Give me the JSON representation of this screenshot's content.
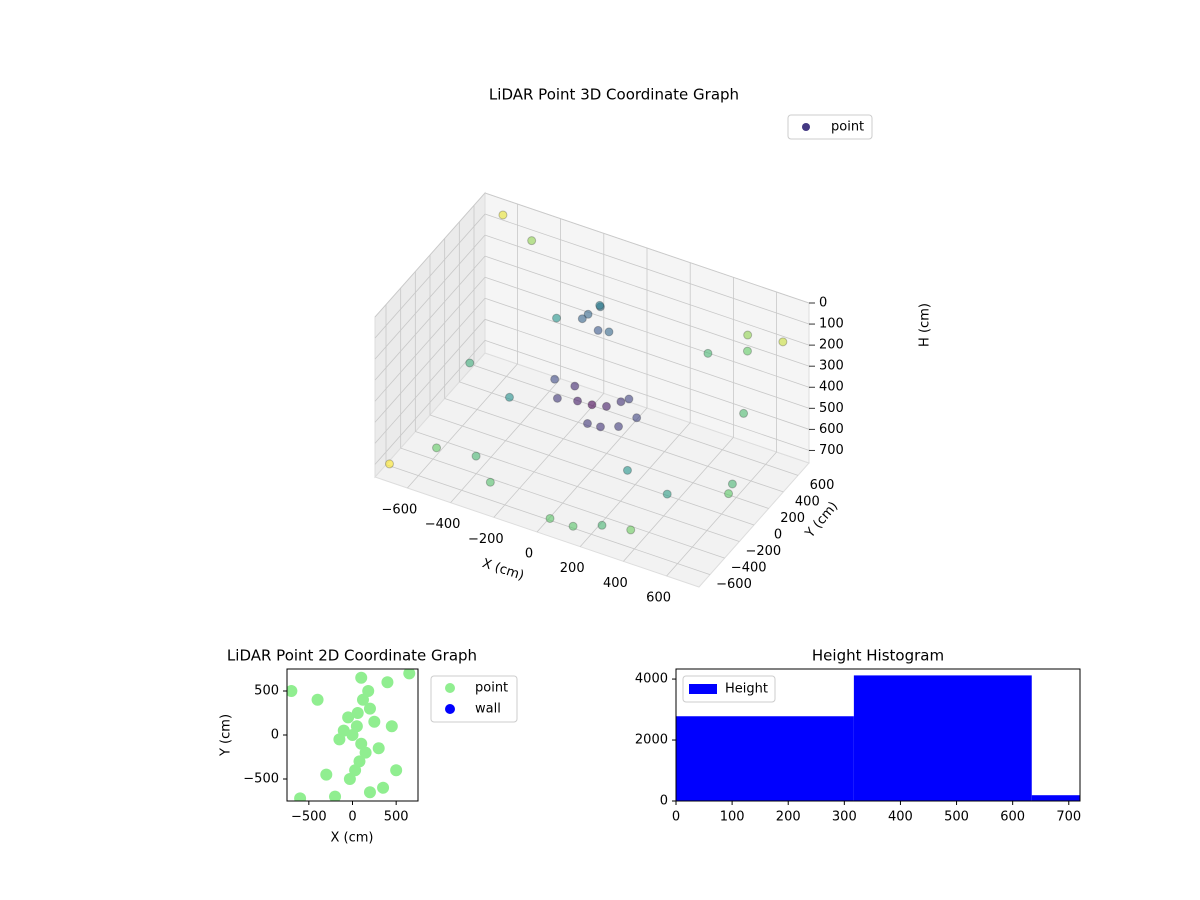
{
  "chart_data": [
    {
      "type": "scatter3d",
      "title": "LiDAR Point 3D Coordinate Graph",
      "xlabel": "X (cm)",
      "ylabel": "Y (cm)",
      "zlabel": "H (cm)",
      "xlim": [
        -750,
        750
      ],
      "ylim": [
        -750,
        750
      ],
      "zlim": [
        0,
        760
      ],
      "z_inverted": true,
      "xticks": [
        {
          "value": -600,
          "label": "−600"
        },
        {
          "value": -400,
          "label": "−400"
        },
        {
          "value": -200,
          "label": "−200"
        },
        0,
        200,
        400,
        600
      ],
      "yticks": [
        {
          "value": -600,
          "label": "−600"
        },
        {
          "value": -400,
          "label": "−400"
        },
        {
          "value": -200,
          "label": "−200"
        },
        0,
        200,
        400,
        600
      ],
      "zticks": [
        0,
        100,
        200,
        300,
        400,
        500,
        600,
        700
      ],
      "grid": true,
      "legend": "upper right",
      "series": [
        {
          "name": "point",
          "color": "#443983",
          "colormap": "viridis",
          "x": [
            -120,
            -80,
            -60,
            -140,
            -100,
            -30,
            0,
            50,
            -50,
            100,
            150,
            -100,
            80,
            200,
            -200,
            30,
            120,
            -150,
            300,
            -300,
            450,
            -450,
            550,
            -550,
            250,
            -350,
            600,
            -600,
            400,
            680,
            -700,
            700,
            -500,
            350,
            500,
            -650,
            150,
            -250,
            50,
            650
          ],
          "y": [
            300,
            350,
            260,
            280,
            400,
            320,
            0,
            50,
            -50,
            100,
            -80,
            60,
            -120,
            20,
            80,
            -150,
            150,
            -30,
            -400,
            400,
            -300,
            200,
            500,
            -500,
            -600,
            -550,
            300,
            100,
            -650,
            600,
            -700,
            -200,
            650,
            550,
            650,
            700,
            -700,
            -650,
            -720,
            0
          ],
          "z": [
            180,
            150,
            220,
            200,
            170,
            240,
            450,
            460,
            430,
            440,
            470,
            420,
            480,
            450,
            430,
            470,
            440,
            460,
            500,
            300,
            600,
            650,
            200,
            650,
            700,
            600,
            400,
            500,
            650,
            150,
            700,
            550,
            100,
            300,
            200,
            50,
            700,
            650,
            690,
            600
          ]
        }
      ]
    },
    {
      "type": "scatter",
      "title": "LiDAR Point 2D Coordinate Graph",
      "xlabel": "X (cm)",
      "ylabel": "Y (cm)",
      "xlim": [
        -750,
        750
      ],
      "ylim": [
        -750,
        750
      ],
      "xticks": [
        {
          "value": -500,
          "label": "−500"
        },
        0,
        500
      ],
      "yticks": [
        {
          "value": -500,
          "label": "−500"
        },
        0,
        500
      ],
      "legend": "outside right",
      "series": [
        {
          "name": "point",
          "color": "#90ee90",
          "x": [
            0,
            50,
            100,
            -50,
            150,
            200,
            -100,
            80,
            120,
            30,
            -150,
            250,
            300,
            180,
            -30,
            60,
            400,
            -300,
            500,
            -700,
            650,
            -200,
            350,
            100,
            -600,
            450,
            200,
            -400
          ],
          "y": [
            0,
            100,
            -100,
            200,
            -200,
            300,
            50,
            -300,
            400,
            -400,
            -50,
            150,
            -150,
            500,
            -500,
            250,
            600,
            -450,
            -400,
            500,
            700,
            -700,
            -600,
            650,
            -720,
            100,
            -650,
            400
          ]
        },
        {
          "name": "wall",
          "color": "#0000ff",
          "x": [],
          "y": []
        }
      ]
    },
    {
      "type": "histogram",
      "title": "Height Histogram",
      "name": "Height",
      "color": "#0000ff",
      "bins": [
        0,
        317,
        634,
        951
      ],
      "counts": [
        2780,
        4120,
        190
      ],
      "xlim": [
        0,
        720
      ],
      "ylim": [
        0,
        4330
      ],
      "xticks": [
        0,
        100,
        200,
        300,
        400,
        500,
        600,
        700
      ],
      "yticks": [
        0,
        2000,
        4000
      ],
      "legend": "upper left"
    }
  ]
}
